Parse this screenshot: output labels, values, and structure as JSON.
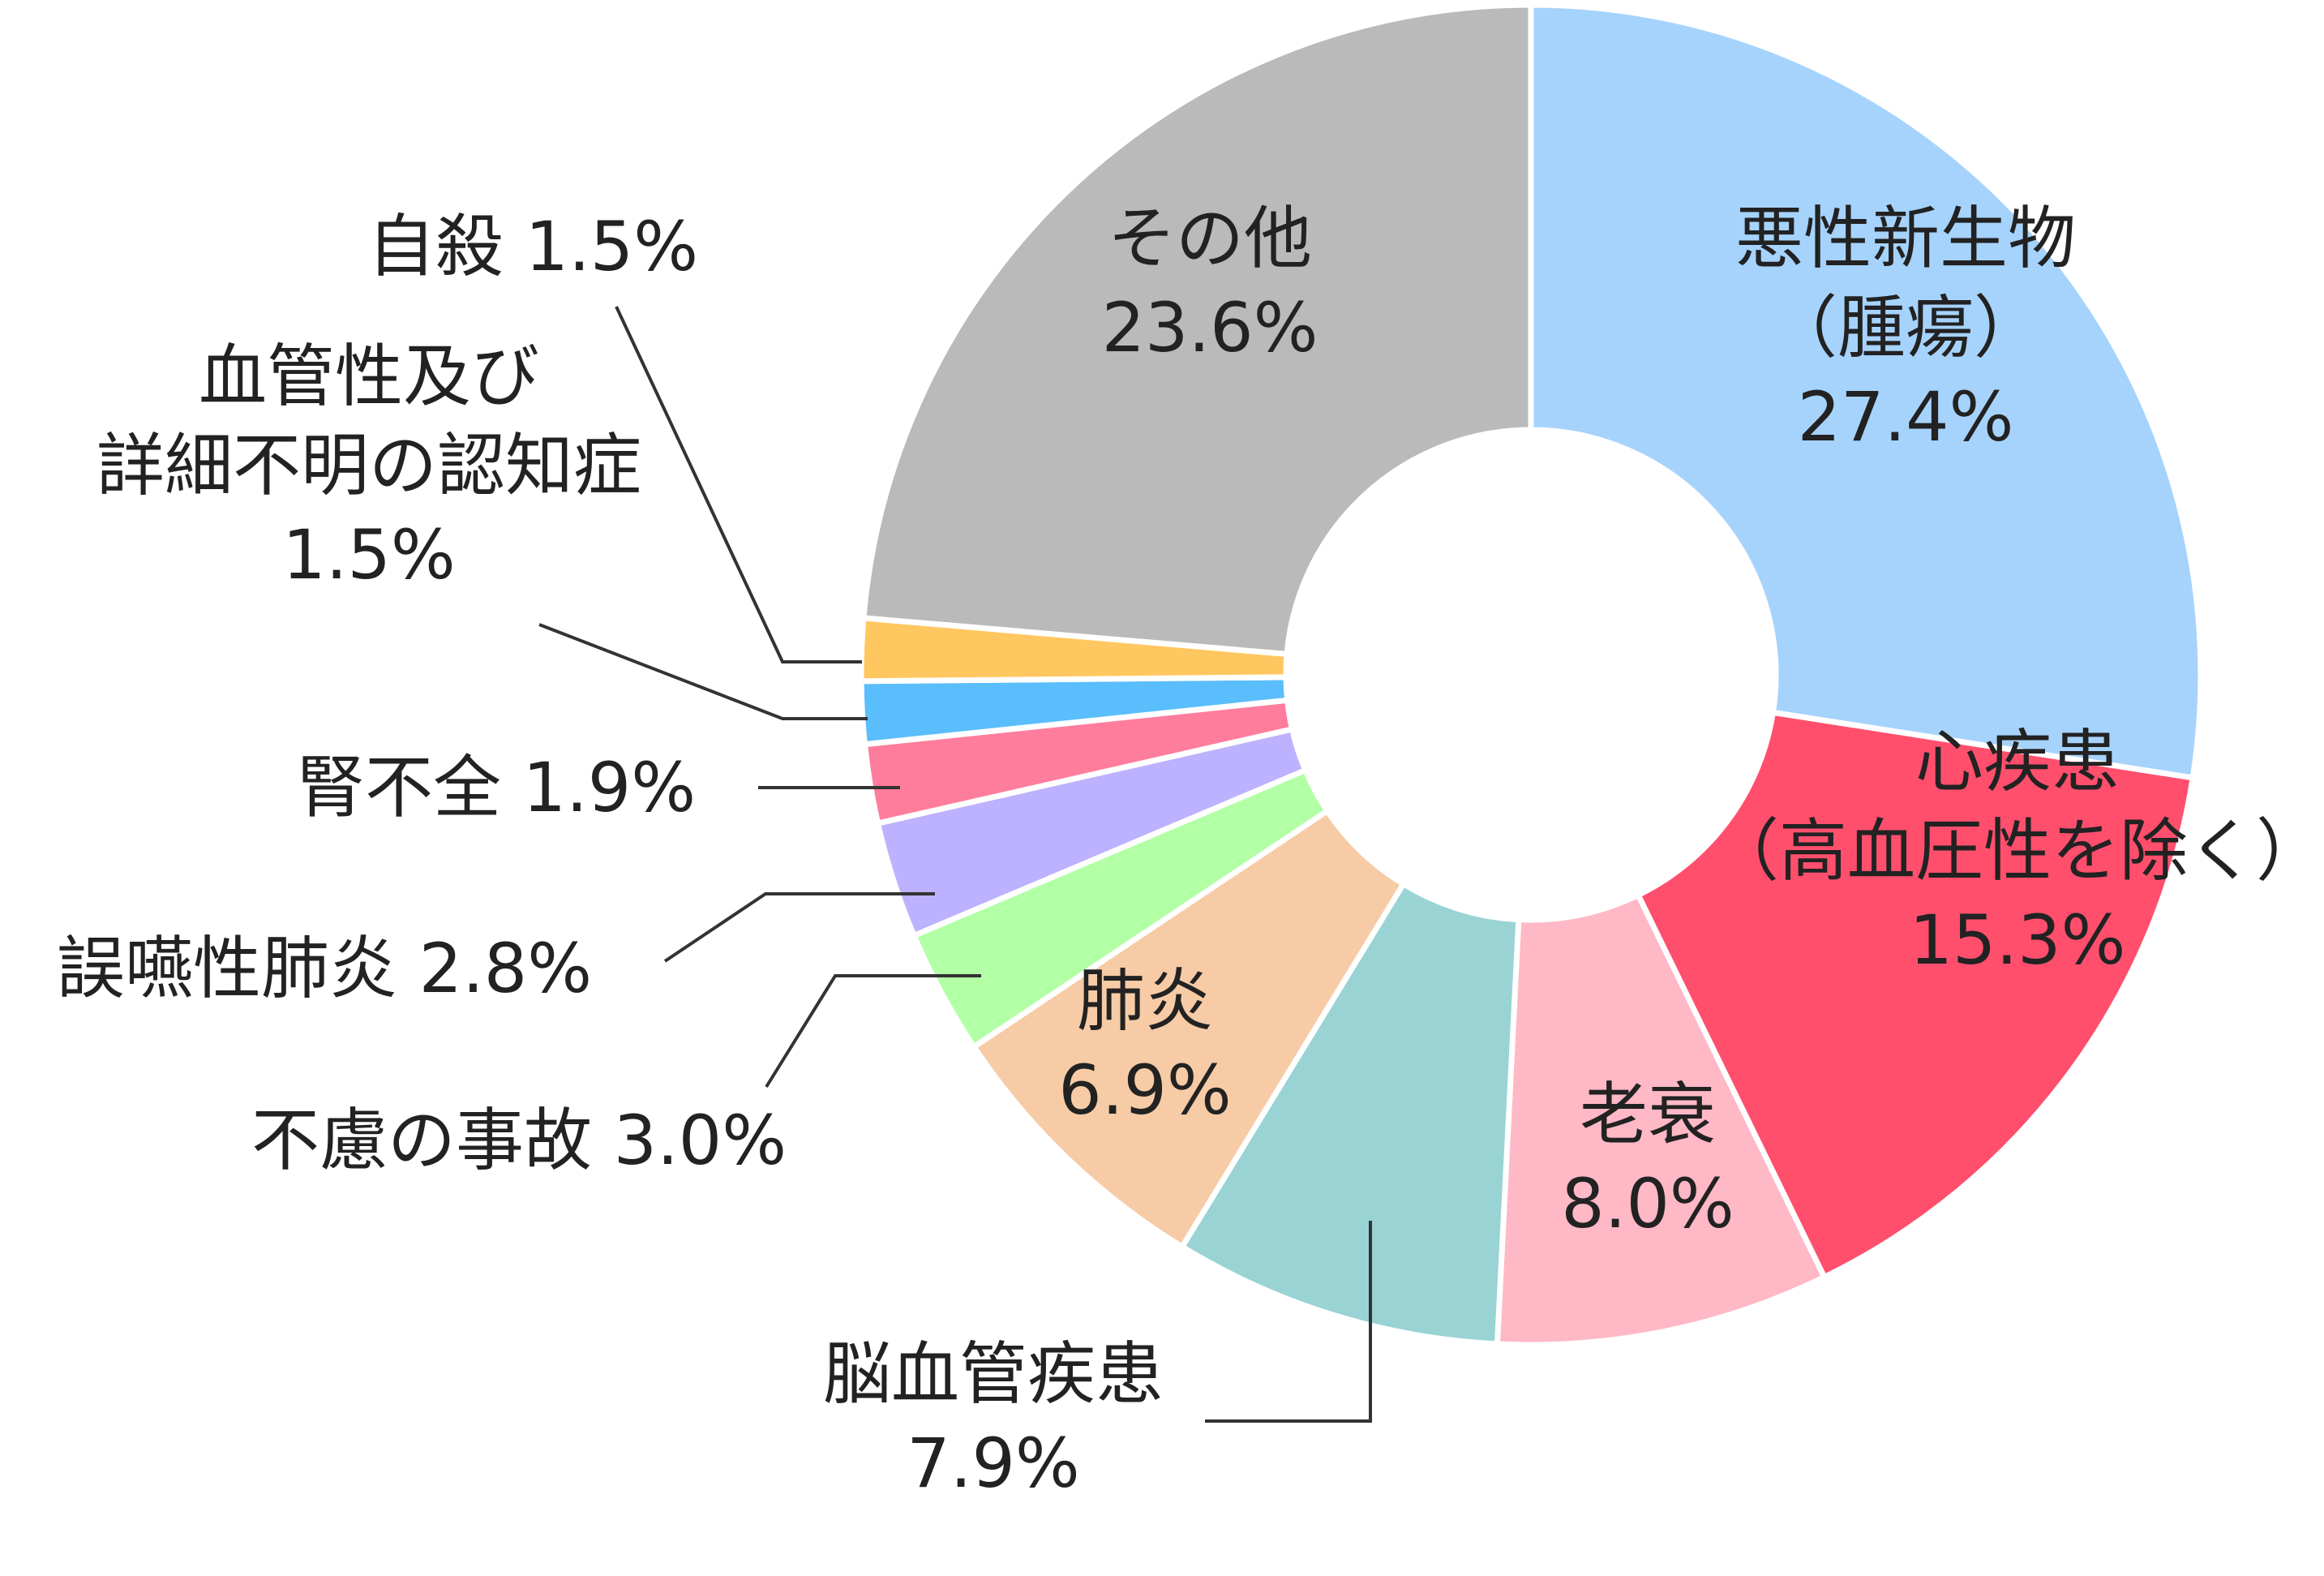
{
  "chart_data": {
    "type": "pie",
    "variant": "donut",
    "unit": "%",
    "slices": [
      {
        "name": "悪性新生物（腫瘍）",
        "value": 27.4,
        "color": "#A6D3FC",
        "label_lines": [
          "悪性新生物",
          "（腫瘍）",
          "27.4%"
        ]
      },
      {
        "name": "心疾患（高血圧性を除く）",
        "value": 15.3,
        "color": "#FF4F6D",
        "label_lines": [
          "心疾患",
          "（高血圧性を除く）",
          "15.3%"
        ]
      },
      {
        "name": "老衰",
        "value": 8.0,
        "color": "#FFB8C6",
        "label_lines": [
          "老衰",
          "8.0%"
        ]
      },
      {
        "name": "脳血管疾患",
        "value": 7.9,
        "color": "#99D3D4",
        "label_lines": [
          "脳血管疾患",
          "7.9%"
        ]
      },
      {
        "name": "肺炎",
        "value": 6.9,
        "color": "#F6CBA6",
        "label_lines": [
          "肺炎",
          "6.9%"
        ]
      },
      {
        "name": "不慮の事故",
        "value": 3.0,
        "color": "#B2FFA6",
        "label_lines": [
          "不慮の事故 3.0%"
        ]
      },
      {
        "name": "誤嚥性肺炎",
        "value": 2.8,
        "color": "#BCB2FF",
        "label_lines": [
          "誤嚥性肺炎 2.8%"
        ]
      },
      {
        "name": "腎不全",
        "value": 1.9,
        "color": "#FF7D9C",
        "label_lines": [
          "腎不全 1.9%"
        ]
      },
      {
        "name": "血管性及び詳細不明の認知症",
        "value": 1.5,
        "color": "#5BBEFC",
        "label_lines": [
          "血管性及び",
          "詳細不明の認知症",
          "1.5%"
        ]
      },
      {
        "name": "自殺",
        "value": 1.5,
        "color": "#FFC760",
        "label_lines": [
          "自殺 1.5%"
        ]
      },
      {
        "name": "その他",
        "value": 23.6,
        "color": "#BABABA",
        "label_lines": [
          "その他",
          "23.6%"
        ]
      }
    ]
  }
}
